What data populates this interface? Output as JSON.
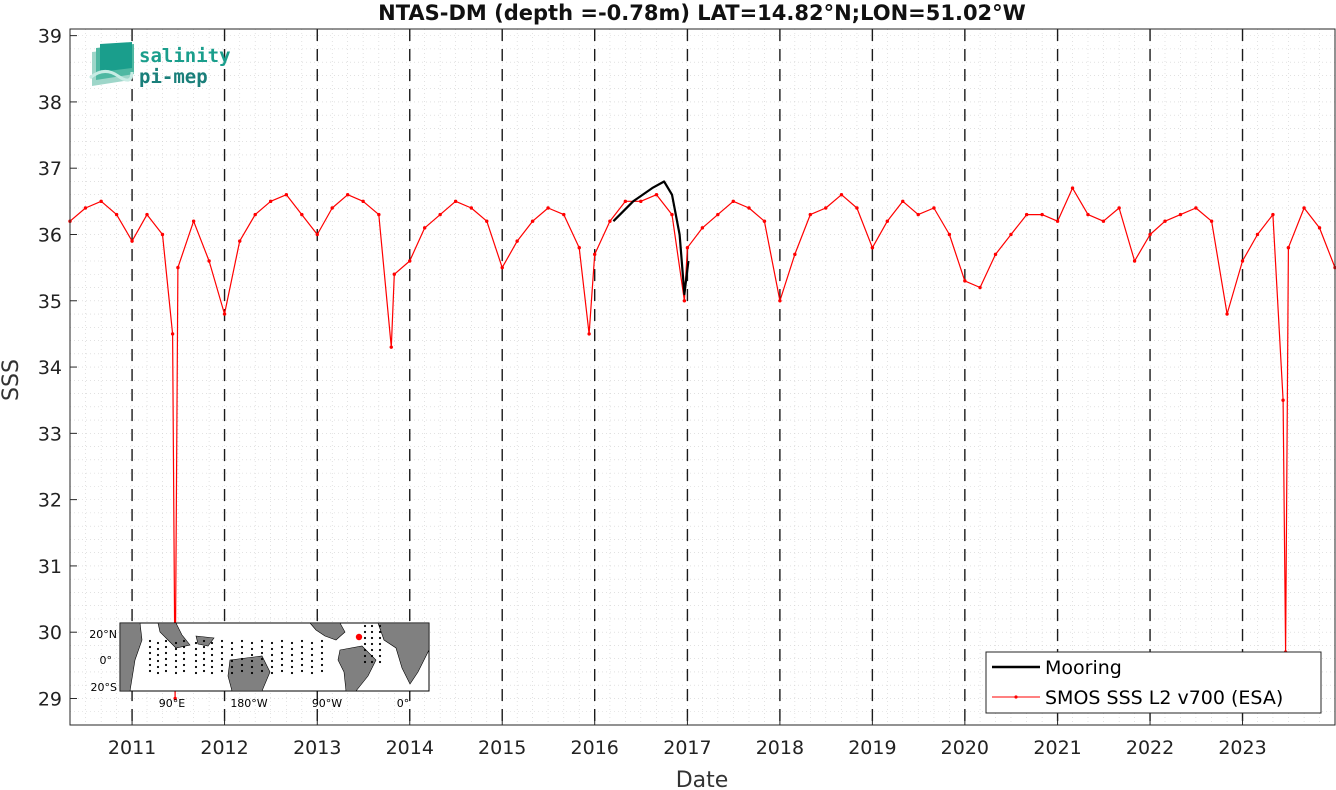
{
  "chart_data": {
    "type": "line",
    "title": "NTAS-DM (depth =-0.78m) LAT=14.82°N;LON=51.02°W",
    "xlabel": "Date",
    "ylabel": "SSS",
    "xlim": [
      "2010-05-01",
      "2024-01-01"
    ],
    "ylim": [
      28.6,
      39.1
    ],
    "yticks": [
      29,
      30,
      31,
      32,
      33,
      34,
      35,
      36,
      37,
      38,
      39
    ],
    "xticks": [
      "2011",
      "2012",
      "2013",
      "2014",
      "2015",
      "2016",
      "2017",
      "2018",
      "2019",
      "2020",
      "2021",
      "2022",
      "2023"
    ],
    "year_boundaries": [
      "2011-01-01",
      "2012-01-01",
      "2013-01-01",
      "2014-01-01",
      "2015-01-01",
      "2016-01-01",
      "2017-01-01",
      "2018-01-01",
      "2019-01-01",
      "2020-01-01",
      "2021-01-01",
      "2022-01-01",
      "2023-01-01"
    ],
    "grid": "dotted",
    "legend_position": "bottom-right",
    "series": [
      {
        "name": "Mooring",
        "color": "#000000",
        "style": "line",
        "x": [
          "2016-03-15",
          "2016-06-01",
          "2016-08-15",
          "2016-10-01",
          "2016-11-01",
          "2016-12-01",
          "2016-12-20",
          "2017-01-05"
        ],
        "y": [
          36.2,
          36.5,
          36.7,
          36.8,
          36.6,
          36.0,
          35.1,
          35.6
        ]
      },
      {
        "name": "SMOS SSS L2 v700 (ESA)",
        "color": "#ff0000",
        "style": "line-with-dot-markers",
        "x": [
          "2010-05-01",
          "2010-07-01",
          "2010-09-01",
          "2010-11-01",
          "2011-01-01",
          "2011-03-01",
          "2011-05-01",
          "2011-06-10",
          "2011-06-20",
          "2011-07-01",
          "2011-09-01",
          "2011-11-01",
          "2012-01-01",
          "2012-03-01",
          "2012-05-01",
          "2012-07-01",
          "2012-09-01",
          "2012-11-01",
          "2013-01-01",
          "2013-03-01",
          "2013-05-01",
          "2013-07-01",
          "2013-09-01",
          "2013-10-20",
          "2013-11-01",
          "2014-01-01",
          "2014-03-01",
          "2014-05-01",
          "2014-07-01",
          "2014-09-01",
          "2014-11-01",
          "2015-01-01",
          "2015-03-01",
          "2015-05-01",
          "2015-07-01",
          "2015-09-01",
          "2015-11-01",
          "2015-12-10",
          "2016-01-01",
          "2016-03-01",
          "2016-05-01",
          "2016-07-01",
          "2016-09-01",
          "2016-11-01",
          "2016-12-20",
          "2017-01-01",
          "2017-03-01",
          "2017-05-01",
          "2017-07-01",
          "2017-09-01",
          "2017-11-01",
          "2018-01-01",
          "2018-03-01",
          "2018-05-01",
          "2018-07-01",
          "2018-09-01",
          "2018-11-01",
          "2019-01-01",
          "2019-03-01",
          "2019-05-01",
          "2019-07-01",
          "2019-09-01",
          "2019-11-01",
          "2020-01-01",
          "2020-03-01",
          "2020-05-01",
          "2020-07-01",
          "2020-09-01",
          "2020-11-01",
          "2021-01-01",
          "2021-03-01",
          "2021-05-01",
          "2021-07-01",
          "2021-09-01",
          "2021-11-01",
          "2022-01-01",
          "2022-03-01",
          "2022-05-01",
          "2022-07-01",
          "2022-09-01",
          "2022-11-01",
          "2023-01-01",
          "2023-03-01",
          "2023-05-01",
          "2023-06-10",
          "2023-06-20",
          "2023-07-01",
          "2023-09-01",
          "2023-11-01",
          "2024-01-01"
        ],
        "y": [
          36.2,
          36.4,
          36.5,
          36.3,
          35.9,
          36.3,
          36.0,
          34.5,
          29.0,
          35.5,
          36.2,
          35.6,
          34.8,
          35.9,
          36.3,
          36.5,
          36.6,
          36.3,
          36.0,
          36.4,
          36.6,
          36.5,
          36.3,
          34.3,
          35.4,
          35.6,
          36.1,
          36.3,
          36.5,
          36.4,
          36.2,
          35.5,
          35.9,
          36.2,
          36.4,
          36.3,
          35.8,
          34.5,
          35.7,
          36.2,
          36.5,
          36.5,
          36.6,
          36.3,
          35.0,
          35.8,
          36.1,
          36.3,
          36.5,
          36.4,
          36.2,
          35.0,
          35.7,
          36.3,
          36.4,
          36.6,
          36.4,
          35.8,
          36.2,
          36.5,
          36.3,
          36.4,
          36.0,
          35.3,
          35.2,
          35.7,
          36.0,
          36.3,
          36.3,
          36.2,
          36.7,
          36.3,
          36.2,
          36.4,
          35.6,
          36.0,
          36.2,
          36.3,
          36.4,
          36.2,
          34.8,
          35.6,
          36.0,
          36.3,
          33.5,
          29.7,
          35.8,
          36.4,
          36.1,
          35.5
        ]
      }
    ]
  },
  "logo": {
    "line1": "salinity",
    "line2": "pi-mep"
  },
  "inset_map": {
    "ytick_labels": [
      "20°N",
      "0°",
      "20°S"
    ],
    "xtick_labels": [
      "90°E",
      "180°W",
      "90°W",
      "0°"
    ]
  },
  "colors": {
    "accent": "#ff0000",
    "mooring": "#000000",
    "land": "#808080",
    "logo_teal": "#1a9e8c"
  }
}
